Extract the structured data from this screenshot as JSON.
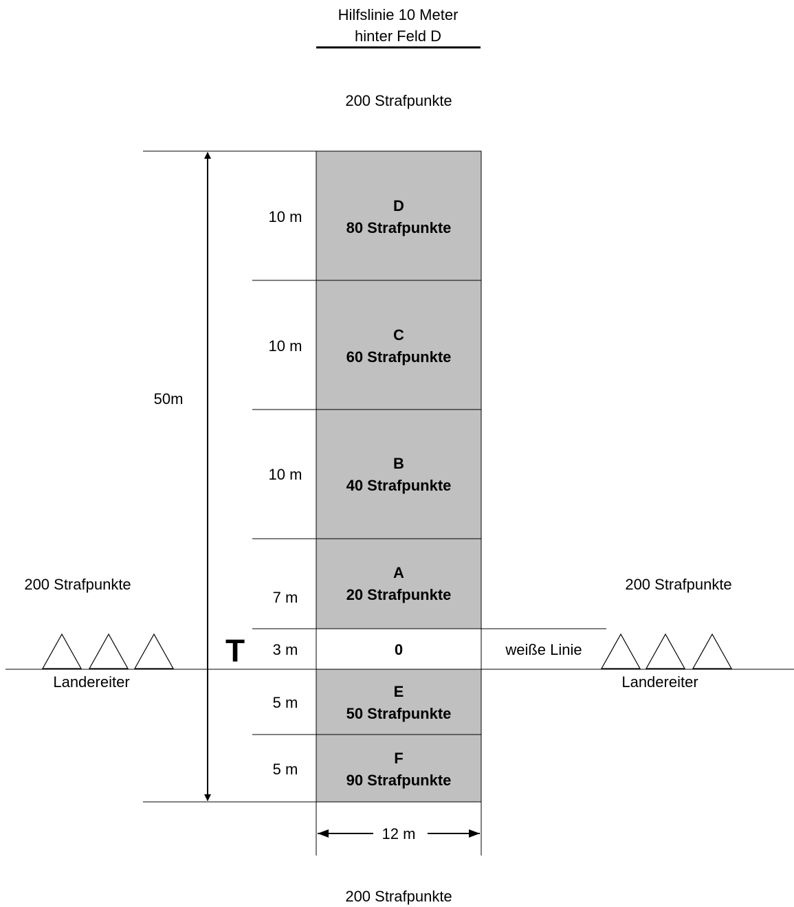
{
  "guide_line": {
    "line1": "Hilfslinie 10 Meter",
    "line2": "hinter Feld D"
  },
  "penalty_top": "200 Strafpunkte",
  "penalty_bottom": "200 Strafpunkte",
  "penalty_left": "200 Strafpunkte",
  "penalty_right": "200 Strafpunkte",
  "total_length": "50m",
  "field_width": "12 m",
  "touchdown_marker": "T",
  "white_line_label": "weiße Linie",
  "landereiter_left": "Landereiter",
  "landereiter_right": "Landereiter",
  "zones": {
    "d": {
      "letter": "D",
      "points": "80 Strafpunkte",
      "length": "10 m"
    },
    "c": {
      "letter": "C",
      "points": "60 Strafpunkte",
      "length": "10 m"
    },
    "b": {
      "letter": "B",
      "points": "40 Strafpunkte",
      "length": "10 m"
    },
    "a": {
      "letter": "A",
      "points": "20 Strafpunkte",
      "length": "7 m"
    },
    "zero": {
      "letter": "0",
      "length": "3 m"
    },
    "e": {
      "letter": "E",
      "points": "50 Strafpunkte",
      "length": "5 m"
    },
    "f": {
      "letter": "F",
      "points": "90 Strafpunkte",
      "length": "5 m"
    }
  },
  "colors": {
    "field_fill": "#c0c0c0",
    "background": "#ffffff",
    "ink": "#000000"
  }
}
